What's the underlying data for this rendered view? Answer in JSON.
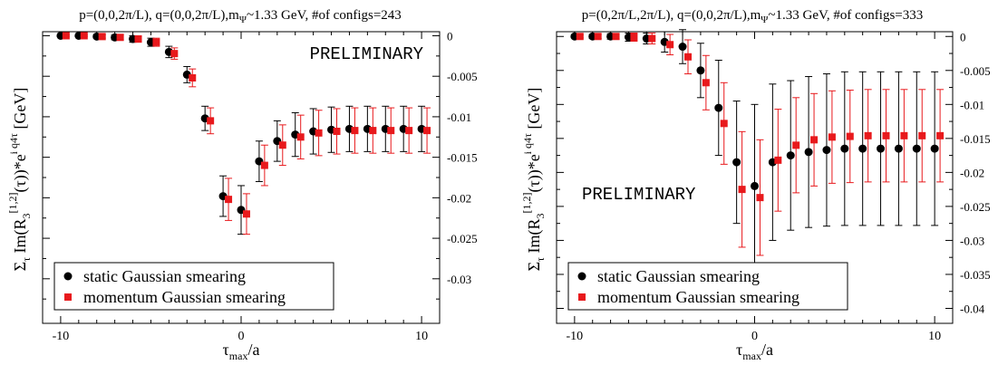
{
  "chart_data": [
    {
      "type": "scatter",
      "title": "p=(0,0,2π/L), q=(0,0,2π/L),m_Ψ~1.33 GeV, #of configs=243",
      "title_parts": {
        "main": "p=(0,0,2π/L), q=(0,0,2π/L),m",
        "sub": "Ψ",
        "rest": "~1.33 GeV, #of configs=243"
      },
      "xlabel": "τ_max/a",
      "xlabel_parts": {
        "main": "τ",
        "sub": "max",
        "rest": "/a"
      },
      "ylabel": "Σ_τ Im(R_3^[1,2](τ))*e^(i q4 τ) [GeV]",
      "ylabel_parts": {
        "sigma": "Σ",
        "sigma_sub": "τ",
        "a": "Im(R",
        "a_sub": "3",
        "a_sup": "[1,2]",
        "b": "(τ))*e",
        "b_sup": "i q4τ",
        "c": "[GeV]"
      },
      "watermark": "PRELIMINARY",
      "xlim": [
        -11,
        11
      ],
      "ylim": [
        -0.0355,
        0.0005
      ],
      "xticks": [
        -10,
        0,
        10
      ],
      "yticks": [
        0,
        -0.005,
        -0.01,
        -0.015,
        -0.02,
        -0.025,
        -0.03
      ],
      "ytick_labels": [
        "0",
        "-0.005",
        "-0.01",
        "-0.015",
        "-0.02",
        "-0.025",
        "-0.03"
      ],
      "legend_position": "bottom-left",
      "series": [
        {
          "name": "static Gaussian smearing",
          "marker": "circle",
          "color": "#000000",
          "x": [
            -10,
            -9,
            -8,
            -7,
            -6,
            -5,
            -4,
            -3,
            -2,
            -1,
            0,
            1,
            2,
            3,
            4,
            5,
            6,
            7,
            8,
            9,
            10
          ],
          "y": [
            0,
            0,
            -0.0001,
            -0.0002,
            -0.0004,
            -0.0008,
            -0.002,
            -0.0048,
            -0.0102,
            -0.0198,
            -0.0215,
            -0.0155,
            -0.013,
            -0.0122,
            -0.0118,
            -0.0116,
            -0.0115,
            -0.0115,
            -0.0115,
            -0.0115,
            -0.0115
          ],
          "err": [
            0.0001,
            0.0001,
            0.0002,
            0.0003,
            0.0004,
            0.0005,
            0.0007,
            0.001,
            0.0015,
            0.0025,
            0.003,
            0.0025,
            0.0025,
            0.0027,
            0.0028,
            0.0028,
            0.0028,
            0.0028,
            0.0028,
            0.0028,
            0.0028
          ]
        },
        {
          "name": "momentum Gaussian smearing",
          "marker": "square",
          "color": "#e8191c",
          "x": [
            -9.7,
            -8.7,
            -7.7,
            -6.7,
            -5.7,
            -4.7,
            -3.7,
            -2.7,
            -1.7,
            -0.7,
            0.3,
            1.3,
            2.3,
            3.3,
            4.3,
            5.3,
            6.3,
            7.3,
            8.3,
            9.3,
            10.3
          ],
          "y": [
            0,
            0,
            -0.0001,
            -0.0002,
            -0.0004,
            -0.0008,
            -0.0022,
            -0.0052,
            -0.0105,
            -0.0202,
            -0.022,
            -0.016,
            -0.0135,
            -0.0125,
            -0.012,
            -0.0118,
            -0.0117,
            -0.0117,
            -0.0117,
            -0.0117,
            -0.0117
          ],
          "err": [
            0.0001,
            0.0001,
            0.0002,
            0.0003,
            0.0004,
            0.0005,
            0.0007,
            0.0011,
            0.0016,
            0.0026,
            0.0025,
            0.0025,
            0.0025,
            0.0027,
            0.0028,
            0.0028,
            0.0028,
            0.0028,
            0.0028,
            0.0028,
            0.0028
          ]
        }
      ]
    },
    {
      "type": "scatter",
      "title": "p=(0,2π/L,2π/L), q=(0,0,2π/L),m_Ψ~1.33 GeV,  #of configs=333",
      "title_parts": {
        "main": "p=(0,2π/L,2π/L), q=(0,0,2π/L),m",
        "sub": "Ψ",
        "rest": "~1.33 GeV,  #of configs=333"
      },
      "xlabel": "τ_max/a",
      "xlabel_parts": {
        "main": "τ",
        "sub": "max",
        "rest": "/a"
      },
      "ylabel": "Σ_τ Im(R_3^[1,2](τ))*e^(i q4 τ) [GeV]",
      "ylabel_parts": {
        "sigma": "Σ",
        "sigma_sub": "τ",
        "a": "Im(R",
        "a_sub": "3",
        "a_sup": "[1,2]",
        "b": "(τ))*e",
        "b_sup": "i q4τ",
        "c": "[GeV]"
      },
      "watermark": "PRELIMINARY",
      "xlim": [
        -11,
        11
      ],
      "ylim": [
        -0.0422,
        0.0007
      ],
      "xticks": [
        -10,
        0,
        10
      ],
      "yticks": [
        0,
        -0.005,
        -0.01,
        -0.015,
        -0.02,
        -0.025,
        -0.03,
        -0.035,
        -0.04
      ],
      "ytick_labels": [
        "0",
        "-0.005",
        "-0.01",
        "-0.015",
        "-0.02",
        "-0.025",
        "-0.03",
        "-0.035",
        "-0.04"
      ],
      "legend_position": "bottom-left",
      "series": [
        {
          "name": "static Gaussian smearing",
          "marker": "circle",
          "color": "#000000",
          "x": [
            -10,
            -9,
            -8,
            -7,
            -6,
            -5,
            -4,
            -3,
            -2,
            -1,
            0,
            1,
            2,
            3,
            4,
            5,
            6,
            7,
            8,
            9,
            10
          ],
          "y": [
            0,
            0,
            0,
            -0.0001,
            -0.0003,
            -0.0008,
            -0.0015,
            -0.005,
            -0.0105,
            -0.0185,
            -0.022,
            -0.0185,
            -0.0175,
            -0.017,
            -0.0167,
            -0.0165,
            -0.0165,
            -0.0165,
            -0.0165,
            -0.0165,
            -0.0165
          ],
          "err": [
            0.0002,
            0.0003,
            0.0004,
            0.0006,
            0.0008,
            0.0015,
            0.0025,
            0.004,
            0.007,
            0.009,
            0.012,
            0.0115,
            0.011,
            0.0111,
            0.0112,
            0.0113,
            0.0113,
            0.0113,
            0.0113,
            0.0113,
            0.0113
          ]
        },
        {
          "name": "momentum Gaussian smearing",
          "marker": "square",
          "color": "#e8191c",
          "x": [
            -9.7,
            -8.7,
            -7.7,
            -6.7,
            -5.7,
            -4.7,
            -3.7,
            -2.7,
            -1.7,
            -0.7,
            0.3,
            1.3,
            2.3,
            3.3,
            4.3,
            5.3,
            6.3,
            7.3,
            8.3,
            9.3,
            10.3
          ],
          "y": [
            0,
            0,
            0,
            -0.0001,
            -0.0003,
            -0.0012,
            -0.003,
            -0.0068,
            -0.0128,
            -0.0225,
            -0.0237,
            -0.0182,
            -0.016,
            -0.0152,
            -0.0148,
            -0.0147,
            -0.0146,
            -0.0146,
            -0.0146,
            -0.0146,
            -0.0146
          ],
          "err": [
            0.0002,
            0.0003,
            0.0004,
            0.0006,
            0.0008,
            0.0015,
            0.0025,
            0.004,
            0.006,
            0.0085,
            0.0085,
            0.0075,
            0.007,
            0.0068,
            0.0068,
            0.0068,
            0.0068,
            0.0068,
            0.0068,
            0.0068,
            0.0068
          ]
        }
      ]
    }
  ]
}
